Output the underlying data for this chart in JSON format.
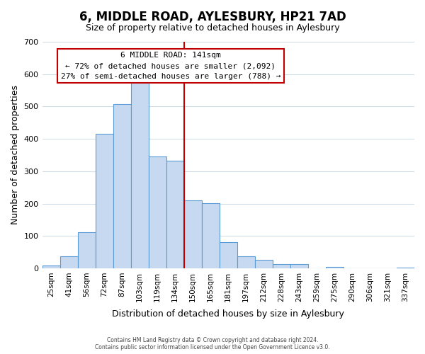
{
  "title": "6, MIDDLE ROAD, AYLESBURY, HP21 7AD",
  "subtitle": "Size of property relative to detached houses in Aylesbury",
  "xlabel": "Distribution of detached houses by size in Aylesbury",
  "ylabel": "Number of detached properties",
  "bar_labels": [
    "25sqm",
    "41sqm",
    "56sqm",
    "72sqm",
    "87sqm",
    "103sqm",
    "119sqm",
    "134sqm",
    "150sqm",
    "165sqm",
    "181sqm",
    "197sqm",
    "212sqm",
    "228sqm",
    "243sqm",
    "259sqm",
    "275sqm",
    "290sqm",
    "306sqm",
    "321sqm",
    "337sqm"
  ],
  "bar_values": [
    8,
    38,
    112,
    415,
    508,
    575,
    345,
    333,
    210,
    201,
    80,
    37,
    25,
    12,
    12,
    0,
    4,
    0,
    0,
    0,
    2
  ],
  "bar_color": "#c6d9f0",
  "bar_edge_color": "#5b9bd5",
  "vline_pos": 7.5,
  "vline_color": "#c00000",
  "annotation_title": "6 MIDDLE ROAD: 141sqm",
  "annotation_line1": "← 72% of detached houses are smaller (2,092)",
  "annotation_line2": "27% of semi-detached houses are larger (788) →",
  "annotation_box_color": "#c00000",
  "annotation_box_fill": "#ffffff",
  "ylim": [
    0,
    700
  ],
  "yticks": [
    0,
    100,
    200,
    300,
    400,
    500,
    600,
    700
  ],
  "footer1": "Contains HM Land Registry data © Crown copyright and database right 2024.",
  "footer2": "Contains public sector information licensed under the Open Government Licence v3.0.",
  "background_color": "#ffffff",
  "grid_color": "#d0dce8"
}
